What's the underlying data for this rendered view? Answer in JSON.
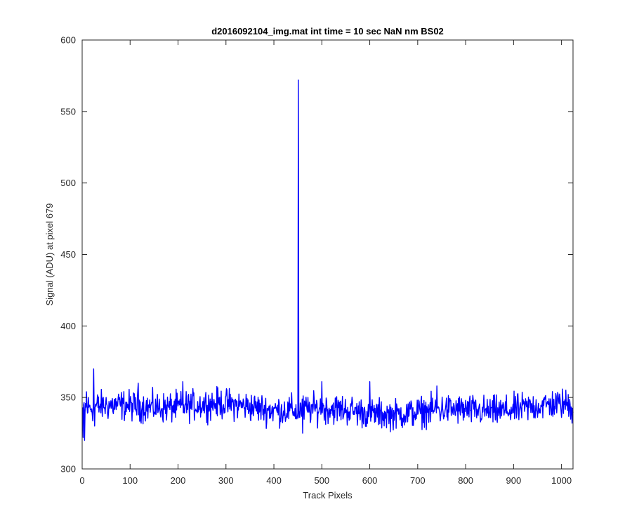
{
  "figure": {
    "title": "d2016092104_img.mat int time = 10 sec  NaN nm BS02"
  },
  "chart_data": {
    "type": "line",
    "title": "d2016092104_img.mat int time = 10 sec  NaN nm BS02",
    "xlabel": "Track Pixels",
    "ylabel": "Signal (ADU) at pixel 679",
    "xlim": [
      0,
      1024
    ],
    "ylim": [
      300,
      600
    ],
    "x_ticks": [
      0,
      100,
      200,
      300,
      400,
      500,
      600,
      700,
      800,
      900,
      1000
    ],
    "y_ticks": [
      300,
      350,
      400,
      450,
      500,
      550,
      600
    ],
    "x_tick_labels": [
      "0",
      "100",
      "200",
      "300",
      "400",
      "500",
      "600",
      "700",
      "800",
      "900",
      "1000"
    ],
    "y_tick_labels": [
      "300",
      "350",
      "400",
      "450",
      "500",
      "550",
      "600"
    ],
    "grid": false,
    "series": [
      {
        "color": "#0000ff",
        "baseline_mean": 342,
        "noise_amplitude": 8,
        "x_range": [
          1,
          1024
        ],
        "notable_points": [
          {
            "x": 2,
            "y": 322
          },
          {
            "x": 5,
            "y": 320
          },
          {
            "x": 9,
            "y": 354
          },
          {
            "x": 24,
            "y": 370
          },
          {
            "x": 26,
            "y": 330
          },
          {
            "x": 117,
            "y": 360
          },
          {
            "x": 210,
            "y": 361
          },
          {
            "x": 448,
            "y": 335
          },
          {
            "x": 451,
            "y": 572
          },
          {
            "x": 453,
            "y": 340
          },
          {
            "x": 460,
            "y": 325
          },
          {
            "x": 500,
            "y": 361
          },
          {
            "x": 600,
            "y": 361
          },
          {
            "x": 740,
            "y": 358
          },
          {
            "x": 1018,
            "y": 345
          },
          {
            "x": 1022,
            "y": 332
          }
        ]
      }
    ]
  }
}
